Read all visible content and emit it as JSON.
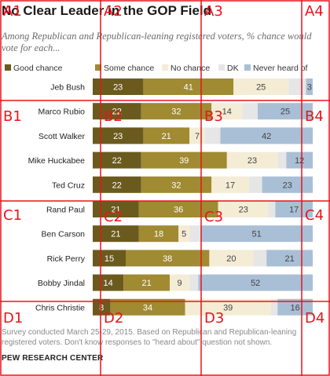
{
  "chart_data": {
    "type": "bar",
    "orientation": "horizontal-stacked",
    "title": "No Clear Leader in the GOP Field",
    "subtitle": "Among Republican and Republican-leaning registered voters, % chance would vote for each...",
    "categories": [
      "Jeb Bush",
      "Marco Rubio",
      "Scott Walker",
      "Mike Huckabee",
      "Ted Cruz",
      "Rand Paul",
      "Ben Carson",
      "Rick Perry",
      "Bobby Jindal",
      "Chris Christie"
    ],
    "series": [
      {
        "name": "Good chance",
        "color": "#6b5a1e",
        "values": [
          23,
          22,
          23,
          22,
          22,
          21,
          21,
          15,
          14,
          8
        ]
      },
      {
        "name": "Some chance",
        "color": "#a08a32",
        "values": [
          41,
          32,
          21,
          39,
          32,
          36,
          18,
          38,
          21,
          34
        ]
      },
      {
        "name": "No chance",
        "color": "#f4ecd5",
        "values": [
          25,
          14,
          7,
          23,
          17,
          23,
          5,
          20,
          9,
          39
        ]
      },
      {
        "name": "DK",
        "color": "#e6e6e6",
        "values": [
          8,
          7,
          7,
          4,
          6,
          3,
          5,
          6,
          4,
          3
        ]
      },
      {
        "name": "Never heard of",
        "color": "#a9bfd6",
        "values": [
          3,
          25,
          42,
          12,
          23,
          17,
          51,
          21,
          52,
          16
        ]
      }
    ],
    "data_labels": [
      [
        "23",
        "41",
        "25",
        "",
        "3"
      ],
      [
        "22",
        "32",
        "14",
        "",
        "25"
      ],
      [
        "23",
        "21",
        "7",
        "",
        "42"
      ],
      [
        "22",
        "39",
        "23",
        "",
        "12"
      ],
      [
        "22",
        "32",
        "17",
        "",
        "23"
      ],
      [
        "21",
        "36",
        "23",
        "",
        "17"
      ],
      [
        "21",
        "18",
        "5",
        "",
        "51"
      ],
      [
        "15",
        "38",
        "20",
        "",
        "21"
      ],
      [
        "14",
        "21",
        "9",
        "",
        "52"
      ],
      [
        "8",
        "34",
        "39",
        "",
        "16"
      ]
    ],
    "xlim": [
      0,
      100
    ]
  },
  "footnote": "Survey conducted March 25-29, 2015. Based on Republican and Republican-leaning registered voters. Don't know responses to \"heard about\" question not shown.",
  "source": "PEW RESEARCH CENTER",
  "grid_labels": [
    "A1",
    "A2",
    "A3",
    "A4",
    "B1",
    "B2",
    "B3",
    "B4",
    "C1",
    "C2",
    "C3",
    "C4",
    "D1",
    "D2",
    "D3",
    "D4"
  ]
}
